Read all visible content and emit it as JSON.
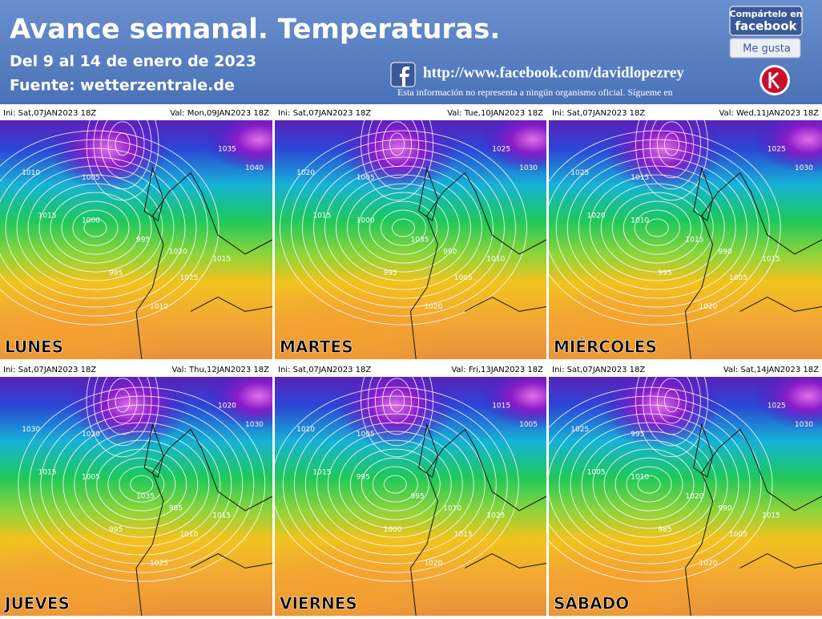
{
  "header": {
    "title": "Avance semanal. Temperaturas.",
    "subtitle": "Del 9 al 14 de enero de 2023",
    "source": "Fuente: wetterzentrale.de",
    "url": "http://www.facebook.com/davidlopezrey",
    "disclaimer": "Esta información no representa a ningún organismo oficial. Sígueme en",
    "share": {
      "line1": "Compártelo en",
      "line2": "facebook",
      "like": "Me gusta"
    }
  },
  "panels": [
    {
      "init": "Ini: Sat,07JAN2023  18Z",
      "valid": "Val: Mon,09JAN2023  18Z",
      "day": "LUNES",
      "isobars": [
        "1010",
        "1015",
        "1005",
        "1000",
        "995",
        "1020",
        "1025",
        "1015",
        "1010",
        "1035",
        "1040",
        "995"
      ]
    },
    {
      "init": "Ini: Sat,07JAN2023  18Z",
      "valid": "Val: Tue,10JAN2023  18Z",
      "day": "MARTES",
      "isobars": [
        "1020",
        "1015",
        "1005",
        "1000",
        "995",
        "990",
        "1005",
        "1010",
        "1020",
        "1025",
        "1030",
        "1035"
      ]
    },
    {
      "init": "Ini: Sat,07JAN2023  18Z",
      "valid": "Val: Wed,11JAN2023  18Z",
      "day": "MIÉRCOLES",
      "isobars": [
        "1025",
        "1020",
        "1015",
        "1010",
        "995",
        "990",
        "1005",
        "1015",
        "1020",
        "1025",
        "1030",
        "1015"
      ]
    },
    {
      "init": "Ini: Sat,07JAN2023  18Z",
      "valid": "Val: Thu,12JAN2023  18Z",
      "day": "JUEVES",
      "isobars": [
        "1030",
        "1015",
        "1020",
        "1005",
        "995",
        "985",
        "1010",
        "1015",
        "1025",
        "1020",
        "1030",
        "1035"
      ]
    },
    {
      "init": "Ini: Sat,07JAN2023  18Z",
      "valid": "Val: Fri,13JAN2023  18Z",
      "day": "VIERNES",
      "isobars": [
        "1010",
        "1015",
        "1005",
        "995",
        "1000",
        "1010",
        "1015",
        "1025",
        "1020",
        "1015",
        "1005",
        "995"
      ]
    },
    {
      "init": "Ini: Sat,07JAN2023  18Z",
      "valid": "Val: Sat,14JAN2023  18Z",
      "day": "SÁBADO",
      "isobars": [
        "1025",
        "1005",
        "995",
        "1010",
        "985",
        "990",
        "1005",
        "1015",
        "1020",
        "1025",
        "1030",
        "1020"
      ]
    }
  ]
}
